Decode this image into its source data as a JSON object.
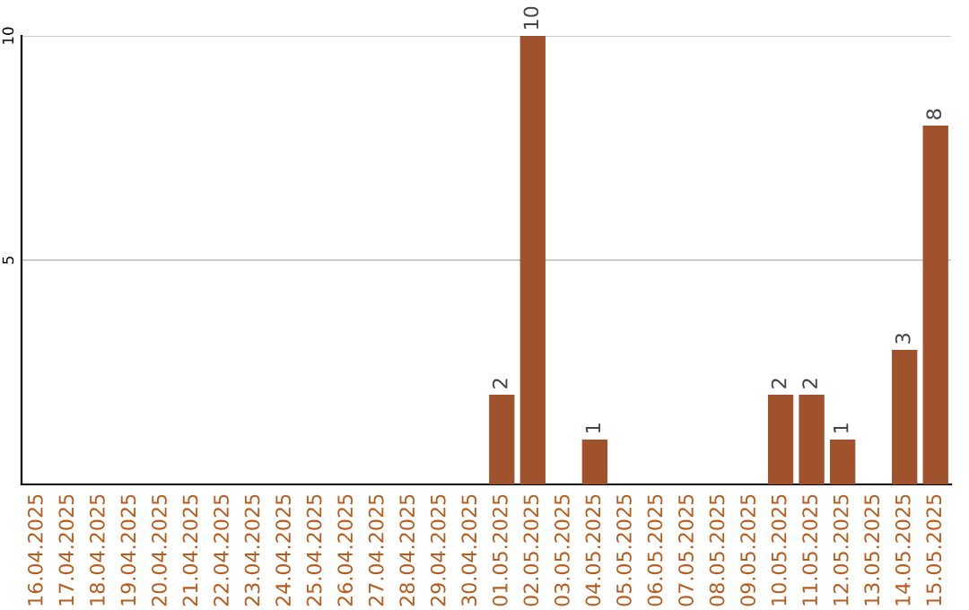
{
  "chart_data": {
    "type": "bar",
    "categories": [
      "16.04.2025",
      "17.04.2025",
      "18.04.2025",
      "19.04.2025",
      "20.04.2025",
      "21.04.2025",
      "22.04.2025",
      "23.04.2025",
      "24.04.2025",
      "25.04.2025",
      "26.04.2025",
      "27.04.2025",
      "28.04.2025",
      "29.04.2025",
      "30.04.2025",
      "01.05.2025",
      "02.05.2025",
      "03.05.2025",
      "04.05.2025",
      "05.05.2025",
      "06.05.2025",
      "07.05.2025",
      "08.05.2025",
      "09.05.2025",
      "10.05.2025",
      "11.05.2025",
      "12.05.2025",
      "13.05.2025",
      "14.05.2025",
      "15.05.2025"
    ],
    "values": [
      0,
      0,
      0,
      0,
      0,
      0,
      0,
      0,
      0,
      0,
      0,
      0,
      0,
      0,
      0,
      2,
      10,
      0,
      1,
      0,
      0,
      0,
      0,
      0,
      2,
      2,
      1,
      0,
      3,
      8
    ],
    "value_labels": [
      null,
      null,
      null,
      null,
      null,
      null,
      null,
      null,
      null,
      null,
      null,
      null,
      null,
      null,
      null,
      "2",
      "10",
      null,
      "1",
      null,
      null,
      null,
      null,
      null,
      "2",
      "2",
      "1",
      null,
      "3",
      "8"
    ],
    "color": "#a0522d",
    "ylim": [
      0,
      10
    ],
    "yticks": [
      5,
      10
    ],
    "grid": "y",
    "legend": false
  }
}
